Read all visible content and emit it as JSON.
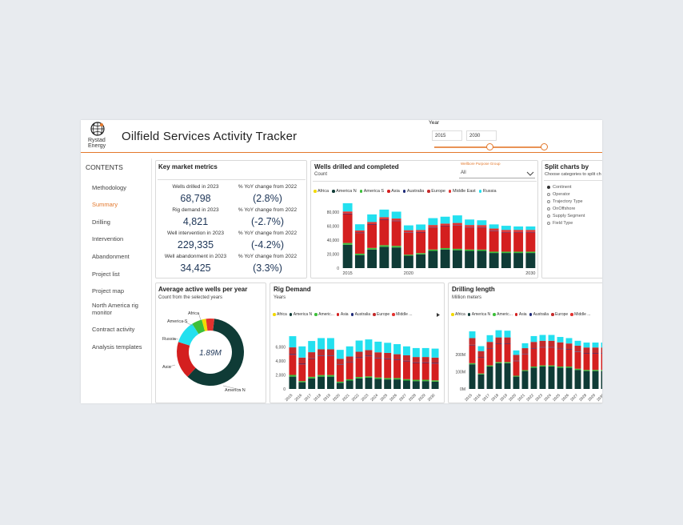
{
  "app": {
    "logo_line1": "Rystad",
    "logo_line2": "Energy",
    "title": "Oilfield Services Activity Tracker"
  },
  "year_filter": {
    "label": "Year",
    "from": "2015",
    "to": "2030",
    "slider_from_fraction": 0.0,
    "slider_to_fraction": 1.0
  },
  "sidebar": {
    "heading": "CONTENTS",
    "items": [
      {
        "label": "Methodology"
      },
      {
        "label": "Summary",
        "active": true
      },
      {
        "label": "Drilling"
      },
      {
        "label": "Intervention"
      },
      {
        "label": "Abandonment"
      },
      {
        "label": "Project list"
      },
      {
        "label": "Project map"
      },
      {
        "label": "North America rig monitor"
      },
      {
        "label": "Contract activity"
      },
      {
        "label": "Analysis templates"
      }
    ]
  },
  "kpi": {
    "title": "Key market metrics",
    "rows": [
      {
        "label": "Wells drilled  in 2023",
        "value": "68,798",
        "change_label": "% YoY change from 2022",
        "change": "(2.8%)"
      },
      {
        "label": "Rig demand in 2023",
        "value": "4,821",
        "change_label": "% YoY change from 2022",
        "change": "(-2.7%)"
      },
      {
        "label": "Well intervention in 2023",
        "value": "229,335",
        "change_label": "% YoY change from 2022",
        "change": "(-4.2%)"
      },
      {
        "label": "Well abandonment in 2023",
        "value": "34,425",
        "change_label": "% YoY change from 2022",
        "change": "(3.3%)"
      }
    ]
  },
  "wells_panel": {
    "title": "Wells drilled and completed",
    "subtitle": "Count",
    "dropdown_label": "Wellbore Purpose Group",
    "dropdown_value": "All",
    "legend": [
      "Africa",
      "America N",
      "America S",
      "Asia",
      "Australia",
      "Europe",
      "Middle East",
      "Russia"
    ]
  },
  "split_panel": {
    "title": "Split charts by",
    "subtitle": "Choose categories to split ch",
    "options": [
      {
        "label": "Continent",
        "selected": true
      },
      {
        "label": "Operator",
        "selected": false
      },
      {
        "label": "Trajectory Type",
        "selected": false
      },
      {
        "label": "OnOffshore",
        "selected": false
      },
      {
        "label": "Supply Segment",
        "selected": false
      },
      {
        "label": "Field Type",
        "selected": false
      }
    ]
  },
  "donut_panel": {
    "title": "Average active wells per year",
    "subtitle": "Count from the selected years",
    "center_label": "1.89M"
  },
  "rig_panel": {
    "title": "Rig Demand",
    "subtitle": "Years",
    "legend": [
      "Africa",
      "America N",
      "Americ...",
      "Asia",
      "Australia",
      "Europe",
      "Middle ..."
    ]
  },
  "drill_panel": {
    "title": "Drilling length",
    "subtitle": "Million meters",
    "legend": [
      "Africa",
      "America N",
      "Americ...",
      "Asia",
      "Australia",
      "Europe",
      "Middle ..."
    ]
  },
  "colors": {
    "accent": "#e3782c",
    "Africa": "#f2d900",
    "America N": "#0f3b36",
    "America S": "#3dbf3a",
    "Asia": "#d41f1f",
    "Australia": "#1e2a78",
    "Europe": "#c42b2b",
    "Middle East": "#e3322f",
    "Russia": "#23e0ef"
  },
  "chart_data": [
    {
      "id": "wells",
      "type": "bar",
      "stacked": true,
      "title": "Wells drilled and completed",
      "ylabel": "Count",
      "ylim": [
        0,
        100000
      ],
      "yticks": [
        "0",
        "20,000",
        "40,000",
        "60,000",
        "80,000"
      ],
      "xtick_labels": [
        "2015",
        "2020",
        "2030"
      ],
      "categories": [
        "2015",
        "2016",
        "2017",
        "2018",
        "2019",
        "2020",
        "2021",
        "2022",
        "2023",
        "2024",
        "2025",
        "2026",
        "2027",
        "2028",
        "2029",
        "2030"
      ],
      "series": [
        {
          "name": "America N",
          "values": [
            34000,
            19000,
            27000,
            31000,
            30000,
            18000,
            20000,
            25000,
            27000,
            26000,
            25000,
            25000,
            22000,
            22000,
            22000,
            22000
          ]
        },
        {
          "name": "America S",
          "values": [
            2500,
            2000,
            2300,
            2300,
            2300,
            1500,
            1800,
            2000,
            2100,
            2000,
            2000,
            1900,
            1900,
            1900,
            1900,
            1900
          ]
        },
        {
          "name": "Asia",
          "values": [
            42000,
            30000,
            34000,
            37000,
            36000,
            32000,
            30000,
            32000,
            32000,
            34000,
            32000,
            32000,
            30000,
            28000,
            28000,
            28000
          ]
        },
        {
          "name": "Australia",
          "values": [
            800,
            700,
            700,
            700,
            700,
            600,
            600,
            600,
            600,
            600,
            600,
            600,
            600,
            600,
            600,
            600
          ]
        },
        {
          "name": "Middle East",
          "values": [
            3000,
            3000,
            3000,
            3000,
            3000,
            3000,
            3000,
            3000,
            3000,
            3000,
            3000,
            3000,
            3000,
            3000,
            3000,
            3000
          ]
        },
        {
          "name": "Russia",
          "values": [
            12000,
            9000,
            11000,
            11000,
            10000,
            7000,
            8000,
            10000,
            10000,
            11000,
            8000,
            7000,
            6000,
            6000,
            5000,
            5000
          ]
        }
      ]
    },
    {
      "id": "donut",
      "type": "pie",
      "center_text": "1.89M",
      "slice_labels": [
        "America N",
        "Asia",
        "Russia",
        "America S",
        "Africa"
      ],
      "slices": [
        {
          "name": "America N",
          "value": 60
        },
        {
          "name": "Asia",
          "value": 18
        },
        {
          "name": "Russia",
          "value": 11
        },
        {
          "name": "America S",
          "value": 5
        },
        {
          "name": "Africa",
          "value": 2
        },
        {
          "name": "Middle East",
          "value": 4
        }
      ]
    },
    {
      "id": "rig",
      "type": "bar",
      "stacked": true,
      "title": "Rig Demand",
      "ylabel": "Years",
      "ylim": [
        0,
        6000
      ],
      "yticks": [
        "0",
        "2,000",
        "4,000",
        "6,000"
      ],
      "categories": [
        "2015",
        "2016",
        "2017",
        "2018",
        "2019",
        "2020",
        "2021",
        "2022",
        "2023",
        "2024",
        "2025",
        "2026",
        "2027",
        "2028",
        "2029",
        "2030"
      ],
      "series": [
        {
          "name": "America N",
          "values": [
            1100,
            600,
            950,
            1100,
            1100,
            550,
            750,
            950,
            1000,
            900,
            850,
            850,
            750,
            700,
            700,
            650
          ]
        },
        {
          "name": "America S",
          "values": [
            150,
            100,
            130,
            140,
            140,
            100,
            110,
            120,
            120,
            120,
            120,
            120,
            120,
            120,
            120,
            120
          ]
        },
        {
          "name": "Asia",
          "values": [
            1800,
            1500,
            1600,
            1700,
            1700,
            1500,
            1500,
            1700,
            1800,
            1700,
            1700,
            1600,
            1600,
            1500,
            1500,
            1500
          ]
        },
        {
          "name": "Australia",
          "values": [
            60,
            50,
            50,
            50,
            50,
            40,
            40,
            50,
            50,
            50,
            50,
            50,
            50,
            50,
            50,
            50
          ]
        },
        {
          "name": "Europe",
          "values": [
            600,
            550,
            550,
            550,
            550,
            500,
            500,
            500,
            500,
            500,
            500,
            480,
            480,
            480,
            480,
            480
          ]
        },
        {
          "name": "Middle ...",
          "values": [
            0,
            0,
            0,
            0,
            0,
            0,
            0,
            0,
            0,
            0,
            0,
            0,
            0,
            0,
            0,
            0
          ]
        },
        {
          "name": "Russia",
          "values": [
            1000,
            1000,
            1000,
            1000,
            1000,
            800,
            900,
            1000,
            950,
            950,
            900,
            900,
            800,
            800,
            800,
            800
          ]
        }
      ]
    },
    {
      "id": "drill",
      "type": "bar",
      "stacked": true,
      "title": "Drilling length",
      "ylabel": "Million meters",
      "ylim": [
        0,
        300
      ],
      "yticks": [
        "0M",
        "100M",
        "200M"
      ],
      "categories": [
        "2015",
        "2016",
        "2017",
        "2018",
        "2019",
        "2020",
        "2021",
        "2022",
        "2023",
        "2024",
        "2025",
        "2026",
        "2027",
        "2028",
        "2029",
        "2030"
      ],
      "series": [
        {
          "name": "America N",
          "values": [
            110,
            65,
            100,
            115,
            115,
            55,
            80,
            95,
            100,
            100,
            95,
            95,
            85,
            80,
            80,
            80
          ]
        },
        {
          "name": "America S",
          "values": [
            5,
            4,
            5,
            5,
            5,
            4,
            4,
            5,
            5,
            5,
            5,
            5,
            5,
            5,
            5,
            5
          ]
        },
        {
          "name": "Asia",
          "values": [
            80,
            70,
            75,
            80,
            80,
            65,
            70,
            80,
            80,
            80,
            78,
            75,
            75,
            72,
            72,
            72
          ]
        },
        {
          "name": "Australia",
          "values": [
            2,
            2,
            2,
            2,
            2,
            2,
            2,
            2,
            2,
            2,
            2,
            2,
            2,
            2,
            2,
            2
          ]
        },
        {
          "name": "Europe",
          "values": [
            30,
            28,
            28,
            28,
            28,
            26,
            26,
            28,
            28,
            28,
            28,
            26,
            26,
            26,
            26,
            26
          ]
        },
        {
          "name": "Russia",
          "values": [
            30,
            22,
            30,
            32,
            30,
            20,
            22,
            26,
            26,
            26,
            24,
            24,
            22,
            22,
            22,
            22
          ]
        }
      ]
    }
  ]
}
